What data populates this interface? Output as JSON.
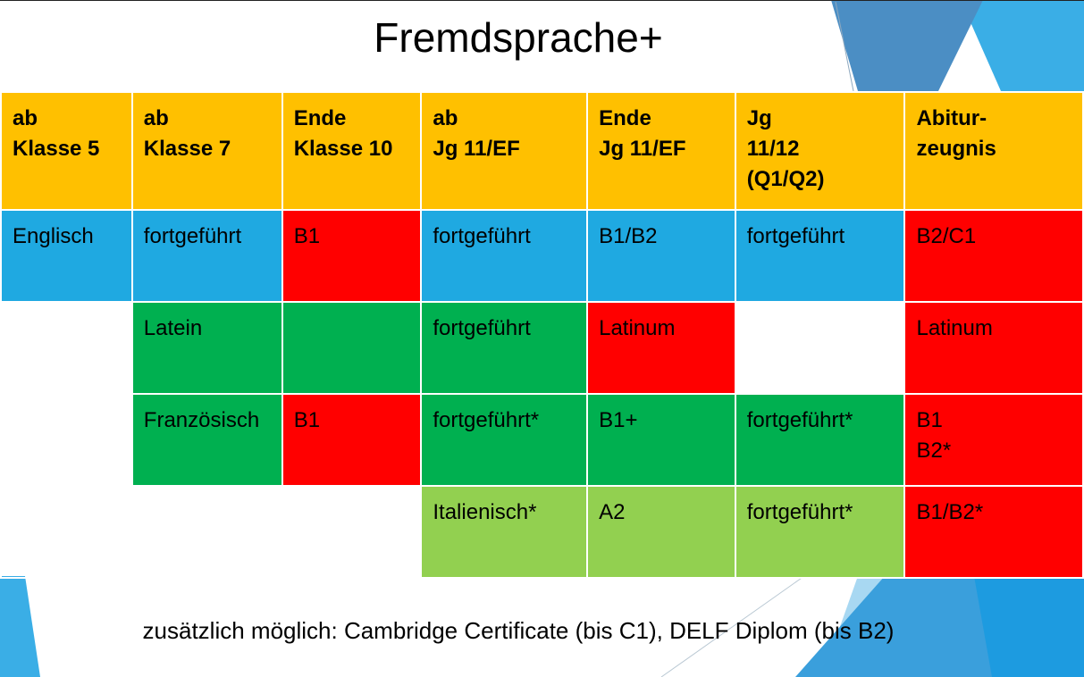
{
  "title": "Fremdsprache+",
  "table": {
    "headers": [
      "ab\nKlasse 5",
      "ab\nKlasse  7",
      "Ende\nKlasse 10",
      "ab\nJg 11/EF",
      "Ende\nJg 11/EF",
      "Jg\n11/12\n(Q1/Q2)",
      "Abitur-\nzeugnis"
    ],
    "rows": [
      [
        "Englisch",
        "fortgeführt",
        "B1",
        "fortgeführt",
        "B1/B2",
        "fortgeführt",
        "B2/C1"
      ],
      [
        "",
        "Latein",
        "",
        "fortgeführt",
        "Latinum",
        "",
        "Latinum"
      ],
      [
        "",
        "Französisch",
        "B1",
        "fortgeführt*",
        "B1+",
        "fortgeführt*",
        "B1\nB2*"
      ],
      [
        "",
        "",
        "",
        "Italienisch*",
        "A2",
        "fortgeführt*",
        "B1/B2*"
      ]
    ]
  },
  "colors": {
    "header": "#ffc000",
    "blue": "#1fa9e1",
    "red": "#ff0000",
    "green": "#00b050",
    "light_green": "#92d050"
  },
  "footer": "zusätzlich möglich: Cambridge Certificate (bis C1), DELF Diplom (bis B2)"
}
